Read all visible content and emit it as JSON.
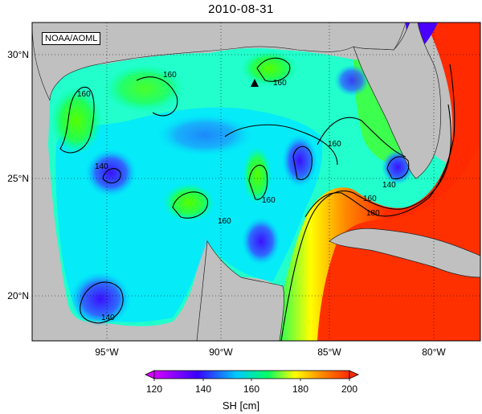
{
  "title": "2010-08-31",
  "credit": "NOAA/AOML",
  "map": {
    "lon_ticks": [
      "95°W",
      "90°W",
      "85°W",
      "80°W"
    ],
    "lat_ticks": [
      "30°N",
      "25°N",
      "20°N"
    ],
    "contour_labels": [
      "160",
      "160",
      "140",
      "160",
      "160",
      "160",
      "140",
      "160",
      "180",
      "140"
    ],
    "marker": "black-triangle"
  },
  "colorbar": {
    "ticks": [
      "120",
      "140",
      "160",
      "180",
      "200"
    ],
    "label": "SH [cm]",
    "colors": [
      "#d400ff",
      "#3a00ff",
      "#00c8ff",
      "#00ff66",
      "#ffff00",
      "#ff8800",
      "#ff2a00"
    ]
  }
}
